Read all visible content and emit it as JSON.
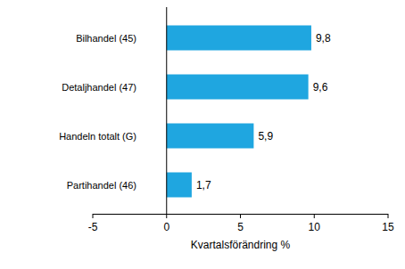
{
  "chart_data": {
    "type": "bar",
    "orientation": "horizontal",
    "categories": [
      "Bilhandel (45)",
      "Detaljhandel (47)",
      "Handeln totalt (G)",
      "Partihandel (46)"
    ],
    "values": [
      9.8,
      9.6,
      5.9,
      1.7
    ],
    "value_labels": [
      "9,8",
      "9,6",
      "5,9",
      "1,7"
    ],
    "data_labels": true,
    "color": "#1fa6e0",
    "xlim": [
      -5,
      15
    ],
    "xticks": [
      -5,
      0,
      5,
      10,
      15
    ],
    "xlabel": "Kvartalsförändring %",
    "grid": false
  }
}
